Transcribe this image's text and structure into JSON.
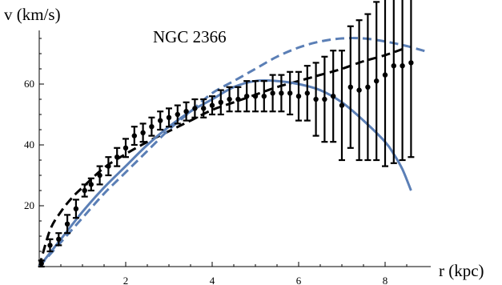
{
  "chart_data": {
    "type": "scatter",
    "title": "NGC 2366",
    "xlabel": "r (kpc)",
    "ylabel": "v (km/s)",
    "xlim": [
      0,
      9
    ],
    "ylim": [
      0,
      77
    ],
    "x_ticks": [
      2,
      4,
      6,
      8
    ],
    "y_ticks": [
      20,
      40,
      60
    ],
    "x_tick_labels": [
      "2",
      "4",
      "6",
      "8"
    ],
    "y_tick_labels": [
      "20",
      "40",
      "60"
    ],
    "grid": false,
    "legend": "none",
    "observations": {
      "r": [
        0.05,
        0.25,
        0.45,
        0.65,
        0.85,
        1.05,
        1.2,
        1.4,
        1.6,
        1.8,
        2.0,
        2.2,
        2.4,
        2.6,
        2.8,
        3.0,
        3.2,
        3.4,
        3.6,
        3.8,
        4.0,
        4.2,
        4.4,
        4.6,
        4.8,
        5.0,
        5.2,
        5.4,
        5.6,
        5.8,
        6.0,
        6.2,
        6.4,
        6.6,
        6.8,
        7.0,
        7.2,
        7.4,
        7.6,
        7.8,
        8.0,
        8.2,
        8.4,
        8.6
      ],
      "v": [
        1,
        7,
        9,
        14,
        19,
        25,
        27,
        30,
        33,
        36,
        39,
        43,
        44,
        46,
        48,
        49,
        50,
        51,
        52,
        52,
        53,
        54,
        55,
        55,
        56,
        56,
        56,
        57,
        57,
        57,
        56,
        57,
        55,
        55,
        56,
        53,
        59,
        58,
        59,
        61,
        63,
        66,
        66,
        67
      ],
      "err": [
        1,
        2,
        2,
        3,
        3,
        2,
        2,
        3,
        3,
        3,
        3,
        3,
        3,
        3,
        3,
        3,
        3,
        3,
        3,
        3,
        3,
        4,
        4,
        4,
        5,
        5,
        5,
        6,
        6,
        7,
        8,
        9,
        12,
        14,
        15,
        18,
        20,
        23,
        24,
        26,
        30,
        32,
        31,
        31
      ]
    },
    "series": [
      {
        "style": "dashed",
        "color": "#000000",
        "x": [
          0,
          0.25,
          0.5,
          0.75,
          1,
          1.5,
          2,
          2.5,
          3,
          3.5,
          4,
          4.5,
          5,
          5.5,
          6,
          6.5,
          7,
          7.5,
          8,
          8.5
        ],
        "y": [
          0,
          12,
          18,
          22.5,
          26,
          32.5,
          37,
          41,
          44.5,
          48,
          51.5,
          54,
          56.5,
          59,
          61,
          63,
          65,
          67.5,
          69.5,
          72
        ]
      },
      {
        "style": "dashed",
        "color": "#5b7fb6",
        "x": [
          0,
          0.5,
          1,
          1.5,
          2,
          2.5,
          3,
          3.5,
          4,
          4.5,
          5,
          5.5,
          6,
          6.5,
          7,
          7.5,
          8,
          8.5,
          9
        ],
        "y": [
          0,
          8,
          16,
          24,
          31,
          38,
          45,
          51,
          57,
          61,
          65,
          69,
          72,
          74,
          75,
          75,
          74,
          72.5,
          70.5
        ]
      },
      {
        "style": "solid",
        "color": "#5b7fb6",
        "x": [
          0,
          0.5,
          1,
          1.5,
          2,
          2.5,
          3,
          3.5,
          4,
          4.5,
          5,
          5.5,
          6,
          6.5,
          7,
          7.5,
          8,
          8.2,
          8.4,
          8.6
        ],
        "y": [
          0,
          9,
          18,
          26,
          33,
          40,
          46,
          51,
          55,
          59,
          61,
          61,
          60,
          58,
          54,
          48,
          41,
          37,
          32,
          25
        ]
      }
    ]
  }
}
